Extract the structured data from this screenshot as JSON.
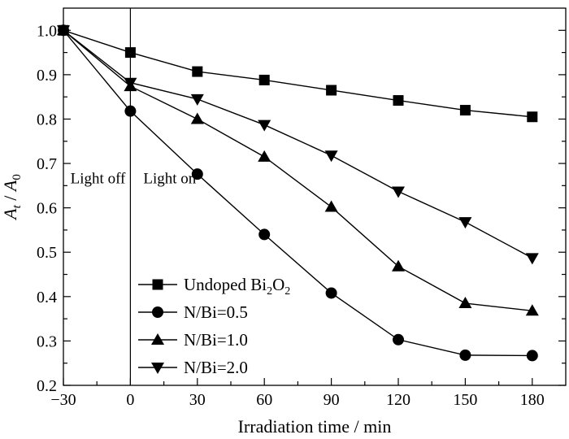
{
  "chart_data": {
    "type": "line",
    "xlabel": "Irradiation time / min",
    "ylabel": {
      "base1": "A",
      "sub1": "t",
      "sep": " / ",
      "base2": "A",
      "sub2": "0"
    },
    "xlim": [
      -30,
      195
    ],
    "ylim": [
      0.2,
      1.05
    ],
    "x_ticks": [
      -30,
      0,
      30,
      60,
      90,
      120,
      150,
      180
    ],
    "x_tick_labels": [
      "−30",
      "0",
      "30",
      "60",
      "90",
      "120",
      "150",
      "180"
    ],
    "y_ticks": [
      0.2,
      0.3,
      0.4,
      0.5,
      0.6,
      0.7,
      0.8,
      0.9,
      1.0
    ],
    "y_tick_labels": [
      "0.2",
      "0.3",
      "0.4",
      "0.5",
      "0.6",
      "0.7",
      "0.8",
      "0.9",
      "1.0"
    ],
    "grid": false,
    "legend_position": "bottom-left",
    "annotations": {
      "light_off": "Light off",
      "light_on": "Light on",
      "divider_x": 0
    },
    "series": [
      {
        "name_parts": [
          "Undoped Bi",
          "2",
          "O",
          "2"
        ],
        "marker": "square",
        "x": [
          -30,
          0,
          30,
          60,
          90,
          120,
          150,
          180
        ],
        "values": [
          1.0,
          0.95,
          0.907,
          0.888,
          0.865,
          0.842,
          0.82,
          0.805
        ]
      },
      {
        "name_parts": [
          "N/Bi=0.5"
        ],
        "marker": "circle",
        "x": [
          -30,
          0,
          30,
          60,
          90,
          120,
          150,
          180
        ],
        "values": [
          1.0,
          0.818,
          0.676,
          0.54,
          0.408,
          0.303,
          0.268,
          0.267
        ]
      },
      {
        "name_parts": [
          "N/Bi=1.0"
        ],
        "marker": "triangle-up",
        "x": [
          -30,
          0,
          30,
          60,
          90,
          120,
          150,
          180
        ],
        "values": [
          1.0,
          0.874,
          0.8,
          0.715,
          0.602,
          0.468,
          0.385,
          0.368
        ]
      },
      {
        "name_parts": [
          "N/Bi=2.0"
        ],
        "marker": "triangle-down",
        "x": [
          -30,
          0,
          30,
          60,
          90,
          120,
          150,
          180
        ],
        "values": [
          1.0,
          0.882,
          0.845,
          0.787,
          0.718,
          0.637,
          0.568,
          0.487
        ]
      }
    ],
    "colors": {
      "line": "#000000",
      "marker": "#000000"
    }
  }
}
